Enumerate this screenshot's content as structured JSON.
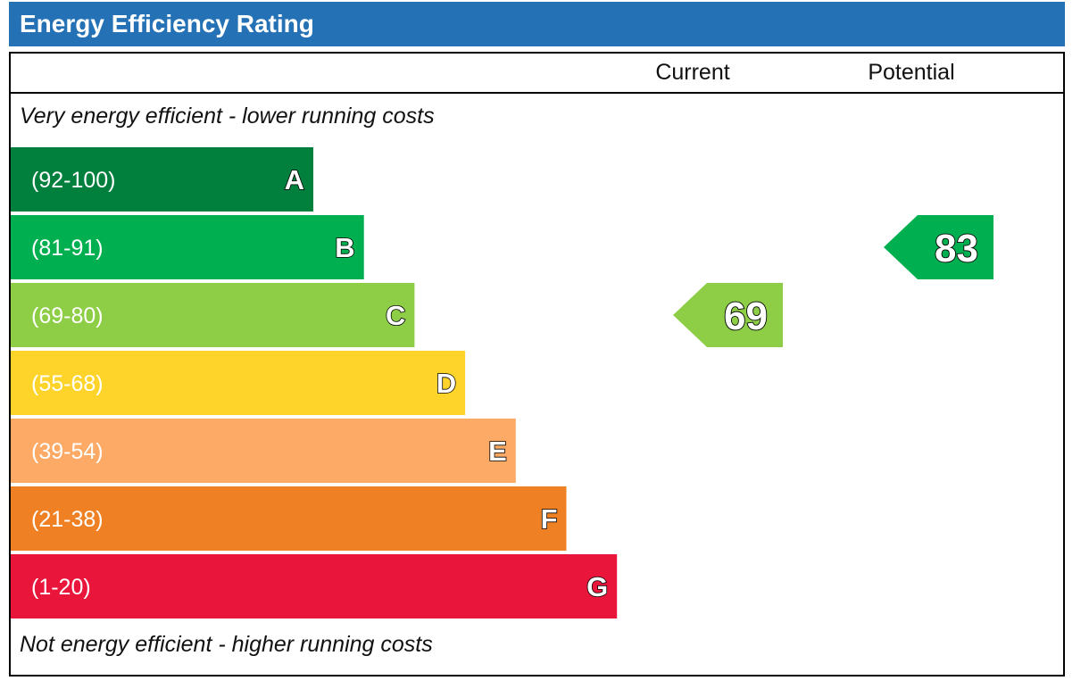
{
  "title": "Energy Efficiency Rating",
  "columns": {
    "current": "Current",
    "potential": "Potential"
  },
  "top_note": "Very energy efficient - lower running costs",
  "bottom_note": "Not energy efficient - higher running costs",
  "chart_data": {
    "type": "bar",
    "title": "Energy Efficiency Rating",
    "bands": [
      {
        "letter": "A",
        "range": "(92-100)",
        "min": 92,
        "max": 100,
        "color": "#007f3d"
      },
      {
        "letter": "B",
        "range": "(81-91)",
        "min": 81,
        "max": 91,
        "color": "#00b050"
      },
      {
        "letter": "C",
        "range": "(69-80)",
        "min": 69,
        "max": 80,
        "color": "#8dce46"
      },
      {
        "letter": "D",
        "range": "(55-68)",
        "min": 55,
        "max": 68,
        "color": "#ffd42a"
      },
      {
        "letter": "E",
        "range": "(39-54)",
        "min": 39,
        "max": 54,
        "color": "#fcaa65"
      },
      {
        "letter": "F",
        "range": "(21-38)",
        "min": 21,
        "max": 38,
        "color": "#ef8023"
      },
      {
        "letter": "G",
        "range": "(1-20)",
        "min": 1,
        "max": 20,
        "color": "#e9153b"
      }
    ],
    "current": {
      "value": 69,
      "band": "C",
      "color": "#8dce46"
    },
    "potential": {
      "value": 83,
      "band": "B",
      "color": "#00b050"
    }
  }
}
